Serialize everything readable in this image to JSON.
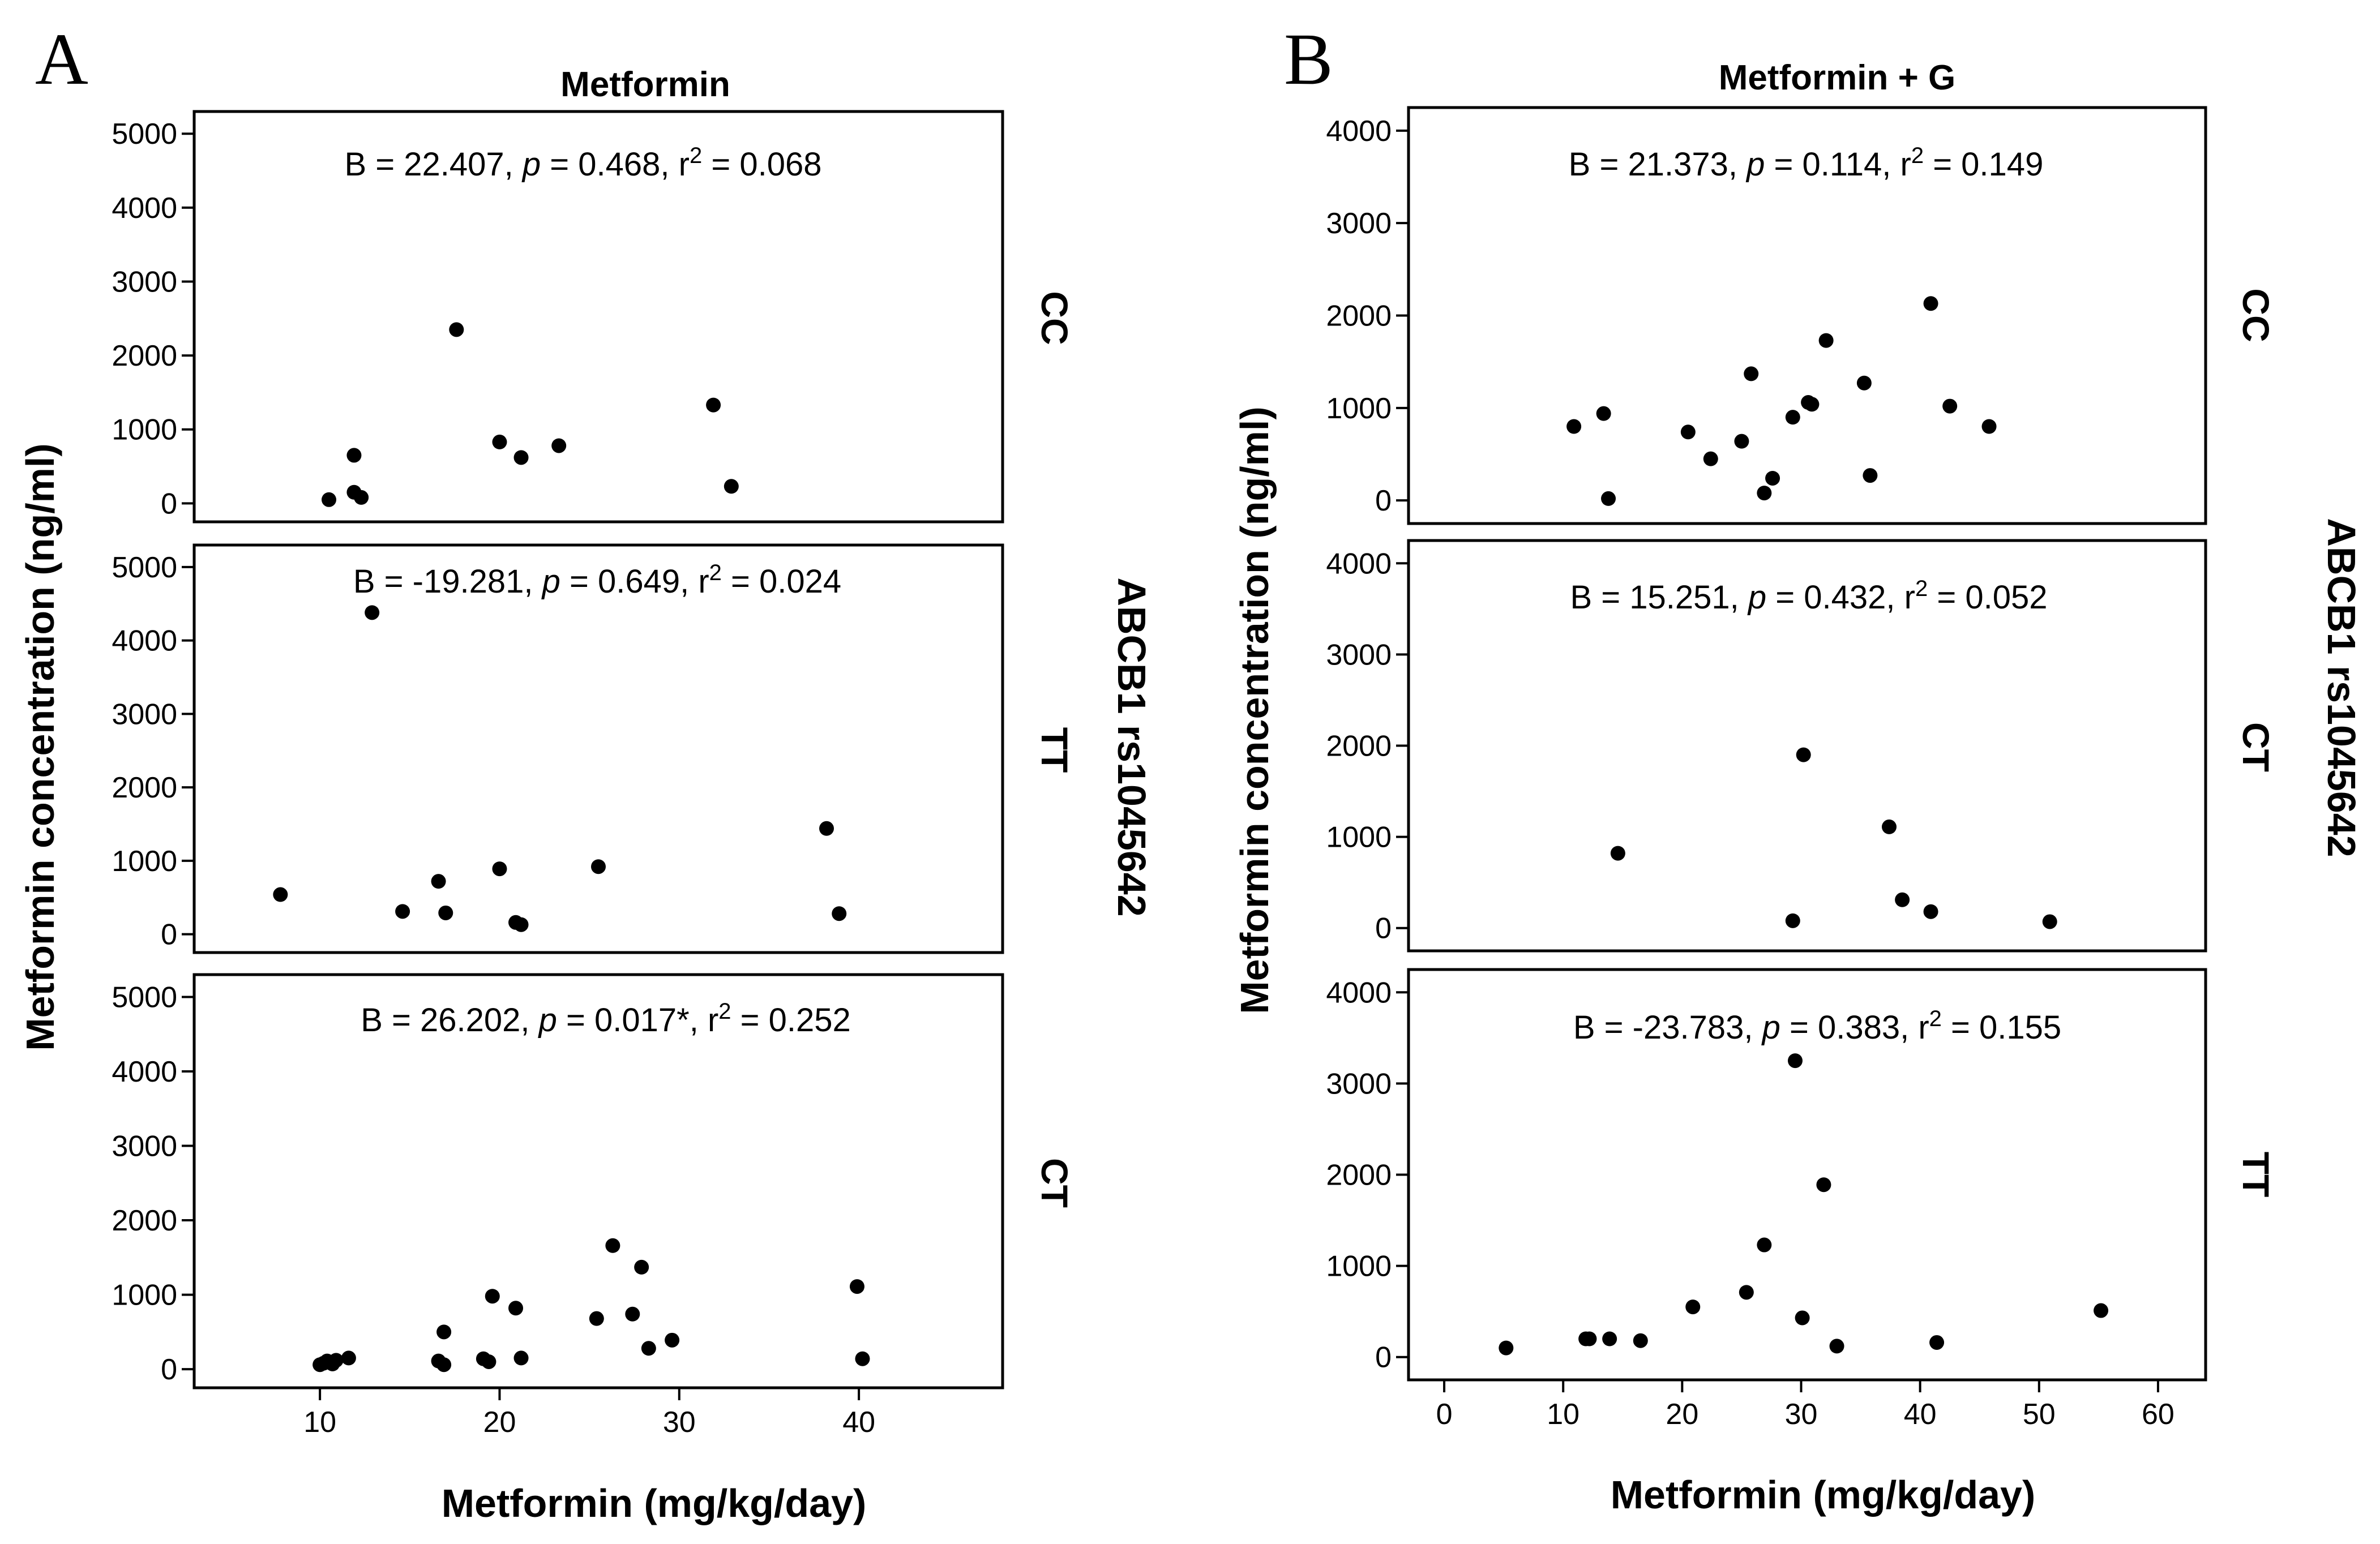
{
  "chart_data": [
    {
      "type": "scatter",
      "panel_label": "A",
      "title": "Metformin",
      "xlabel": "Metformin (mg/kg/day)",
      "ylabel": "Metformin concentration (ng/ml)",
      "side_label": "ABCB1 rs1045642",
      "xlim": [
        3,
        48
      ],
      "xticks": [
        10,
        20,
        30,
        40
      ],
      "ylim": [
        -250,
        5300
      ],
      "yticks": [
        0,
        1000,
        2000,
        3000,
        4000,
        5000
      ],
      "facets": [
        {
          "genotype": "CC",
          "stats": {
            "b": "B = 22.407, ",
            "p_sym": "p",
            "p": " = 0.468, r",
            "r2_sup": "2",
            "r2": " = 0.068"
          },
          "points": [
            [
              10.5,
              50
            ],
            [
              11.9,
              650
            ],
            [
              11.9,
              150
            ],
            [
              12.3,
              80
            ],
            [
              17.6,
              2350
            ],
            [
              20,
              830
            ],
            [
              21.2,
              620
            ],
            [
              23.3,
              780
            ],
            [
              31.9,
              1330
            ],
            [
              32.9,
              230
            ]
          ]
        },
        {
          "genotype": "TT",
          "stats": {
            "b": "B = -19.281, ",
            "p_sym": "p",
            "p": " = 0.649, r",
            "r2_sup": "2",
            "r2": " = 0.024"
          },
          "points": [
            [
              7.8,
              540
            ],
            [
              12.9,
              4380
            ],
            [
              14.6,
              310
            ],
            [
              16.6,
              720
            ],
            [
              17,
              290
            ],
            [
              20,
              890
            ],
            [
              20.9,
              160
            ],
            [
              21.2,
              130
            ],
            [
              25.5,
              920
            ],
            [
              38.2,
              1440
            ],
            [
              38.9,
              280
            ]
          ]
        },
        {
          "genotype": "CT",
          "stats": {
            "b": "B = 26.202, ",
            "p_sym": "p",
            "p": " = 0.017*, r",
            "r2_sup": "2",
            "r2": " = 0.252"
          },
          "points": [
            [
              10,
              60
            ],
            [
              10.2,
              80
            ],
            [
              10.4,
              110
            ],
            [
              10.7,
              70
            ],
            [
              10.9,
              120
            ],
            [
              11.6,
              150
            ],
            [
              16.6,
              110
            ],
            [
              16.9,
              60
            ],
            [
              16.9,
              500
            ],
            [
              19.1,
              140
            ],
            [
              19.4,
              100
            ],
            [
              19.6,
              980
            ],
            [
              20.9,
              820
            ],
            [
              21.2,
              150
            ],
            [
              25.4,
              680
            ],
            [
              26.3,
              1660
            ],
            [
              27.4,
              740
            ],
            [
              27.9,
              1370
            ],
            [
              28.3,
              280
            ],
            [
              29.6,
              390
            ],
            [
              39.9,
              1110
            ],
            [
              40.2,
              140
            ]
          ]
        }
      ]
    },
    {
      "type": "scatter",
      "panel_label": "B",
      "title": "Metformin + G",
      "xlabel": "Metformin (mg/kg/day)",
      "ylabel": "Metformin concentration (ng/ml)",
      "side_label": "ABCB1 rs1045642",
      "xlim": [
        -3,
        64
      ],
      "xticks": [
        0,
        10,
        20,
        30,
        40,
        50,
        60
      ],
      "ylim": [
        -250,
        4250
      ],
      "yticks": [
        0,
        1000,
        2000,
        3000,
        4000
      ],
      "facets": [
        {
          "genotype": "CC",
          "stats": {
            "b": "B = 21.373, ",
            "p_sym": "p",
            "p": " = 0.114, r",
            "r2_sup": "2",
            "r2": " = 0.149"
          },
          "points": [
            [
              10.9,
              800
            ],
            [
              13.4,
              940
            ],
            [
              13.8,
              20
            ],
            [
              20.5,
              740
            ],
            [
              22.4,
              450
            ],
            [
              25,
              640
            ],
            [
              25.8,
              1370
            ],
            [
              26.9,
              80
            ],
            [
              27.6,
              240
            ],
            [
              29.3,
              900
            ],
            [
              30.6,
              1060
            ],
            [
              30.9,
              1040
            ],
            [
              32.1,
              1730
            ],
            [
              35.3,
              1270
            ],
            [
              35.8,
              270
            ],
            [
              40.9,
              2130
            ],
            [
              42.5,
              1020
            ],
            [
              45.8,
              800
            ]
          ]
        },
        {
          "genotype": "CT",
          "stats": {
            "b": "B = 15.251, ",
            "p_sym": "p",
            "p": " = 0.432, r",
            "r2_sup": "2",
            "r2": " = 0.052"
          },
          "points": [
            [
              14.6,
              820
            ],
            [
              29.3,
              80
            ],
            [
              30.2,
              1900
            ],
            [
              37.4,
              1110
            ],
            [
              38.5,
              310
            ],
            [
              40.9,
              180
            ],
            [
              50.9,
              70
            ]
          ]
        },
        {
          "genotype": "TT",
          "stats": {
            "b": "B = -23.783, ",
            "p_sym": "p",
            "p": " = 0.383, r",
            "r2_sup": "2",
            "r2": " = 0.155"
          },
          "points": [
            [
              5.2,
              100
            ],
            [
              11.9,
              200
            ],
            [
              12.2,
              200
            ],
            [
              13.9,
              200
            ],
            [
              16.5,
              180
            ],
            [
              20.9,
              550
            ],
            [
              25.4,
              710
            ],
            [
              26.9,
              1230
            ],
            [
              29.5,
              3250
            ],
            [
              30.1,
              430
            ],
            [
              31.9,
              1890
            ],
            [
              33,
              120
            ],
            [
              41.4,
              160
            ],
            [
              55.2,
              510
            ]
          ]
        }
      ]
    }
  ]
}
